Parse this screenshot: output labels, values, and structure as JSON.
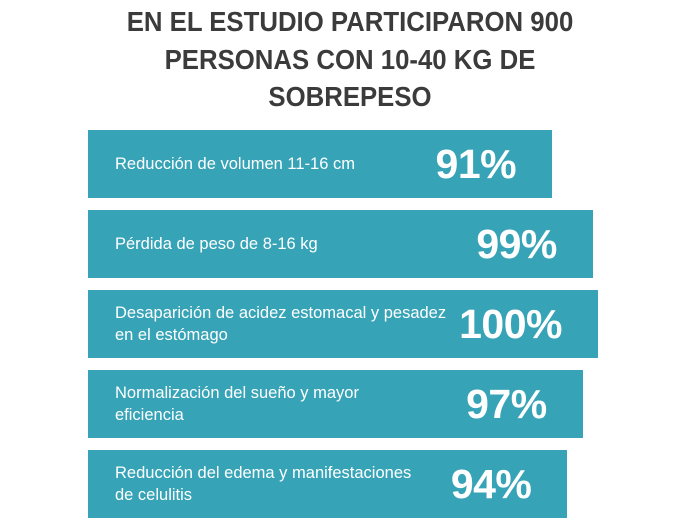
{
  "page": {
    "background": "#ffffff"
  },
  "title": {
    "full_text": "EN EL ESTUDIO PARTICIPARON 900 PERSONAS CON 10-40 KG DE SOBREPESO",
    "lines": [
      "EN EL ESTUDIO PARTICIPARON 900",
      "PERSONAS CON 10-40 KG DE",
      "SOBREPESO"
    ],
    "color": "#3b3b3b"
  },
  "chart_data": {
    "type": "bar",
    "orientation": "horizontal",
    "title": "EN EL ESTUDIO PARTICIPARON 900 PERSONAS CON 10-40 KG DE SOBREPESO",
    "categories": [
      "Reducción de volumen 11-16 cm",
      "Pérdida de peso de 8-16 kg",
      "Desaparición de acidez estomacal y pesadez en el estómago",
      "Normalización del sueño y mayor eficiencia",
      "Reducción del edema y manifestaciones de celulitis"
    ],
    "values": [
      91,
      99,
      100,
      97,
      94
    ],
    "value_labels": [
      "91%",
      "99%",
      "100%",
      "97%",
      "94%"
    ],
    "xlim": [
      0,
      100
    ],
    "grid": false,
    "legend": false,
    "bar_color": "#36a3b7",
    "bar_text_color": "#ffffff",
    "bars": [
      {
        "label_lines": [
          "Reducción de volumen 11-16 cm"
        ],
        "value": 91,
        "value_label": "91%"
      },
      {
        "label_lines": [
          "Pérdida de peso de 8-16 kg"
        ],
        "value": 99,
        "value_label": "99%"
      },
      {
        "label_lines": [
          "Desaparición de acidez estomacal y pesadez",
          "en el estómago"
        ],
        "value": 100,
        "value_label": "100%"
      },
      {
        "label_lines": [
          "Normalización del sueño y mayor",
          "eficiencia"
        ],
        "value": 97,
        "value_label": "97%"
      },
      {
        "label_lines": [
          "Reducción del edema y manifestaciones",
          "de celulitis"
        ],
        "value": 94,
        "value_label": "94%"
      }
    ]
  }
}
